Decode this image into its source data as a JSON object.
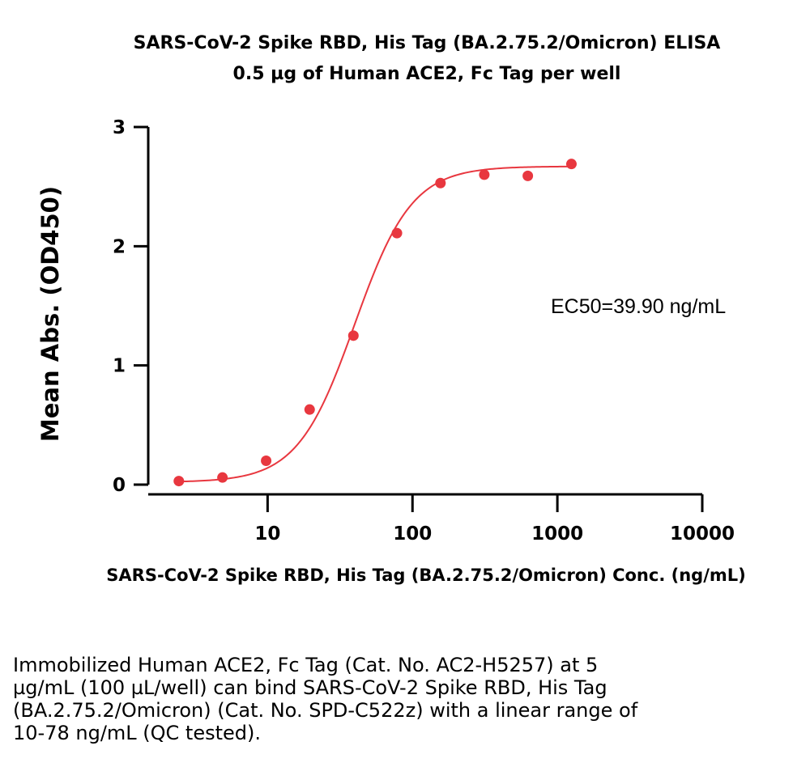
{
  "chart_data": {
    "type": "scatter",
    "title": "SARS-CoV-2 Spike RBD, His Tag (BA.2.75.2/Omicron) ELISA",
    "subtitle": "0.5 µg of Human ACE2, Fc Tag per well",
    "xlabel": "SARS-CoV-2 Spike RBD, His Tag (BA.2.75.2/Omicron) Conc. (ng/mL)",
    "ylabel": "Mean Abs. (OD450)",
    "xscale": "log",
    "xlim": [
      1.5,
      10000
    ],
    "ylim": [
      0,
      3
    ],
    "xticks": [
      10,
      100,
      1000,
      10000
    ],
    "xtick_labels": [
      "10",
      "100",
      "1000",
      "10000"
    ],
    "yticks": [
      0,
      1,
      2,
      3
    ],
    "ytick_labels": [
      "0",
      "1",
      "2",
      "3"
    ],
    "series": [
      {
        "name": "Mean Abs.",
        "color": "#e8373f",
        "x": [
          2.44,
          4.88,
          9.77,
          19.5,
          39.1,
          78.1,
          156,
          313,
          625,
          1250
        ],
        "y": [
          0.03,
          0.06,
          0.2,
          0.63,
          1.25,
          2.11,
          2.53,
          2.6,
          2.59,
          2.69
        ]
      }
    ],
    "fit": {
      "model": "4PL",
      "bottom": 0.02,
      "top": 2.67,
      "ec50": 39.9,
      "hill": 2.2,
      "color": "#e8373f"
    },
    "annotation": "EC50=39.90 ng/mL"
  },
  "caption": "Immobilized Human ACE2, Fc Tag (Cat. No. AC2-H5257) at 5 µg/mL (100 µL/well) can bind SARS-CoV-2 Spike RBD, His Tag (BA.2.75.2/Omicron) (Cat. No. SPD-C522z) with a linear range of 10-78 ng/mL (QC tested)."
}
